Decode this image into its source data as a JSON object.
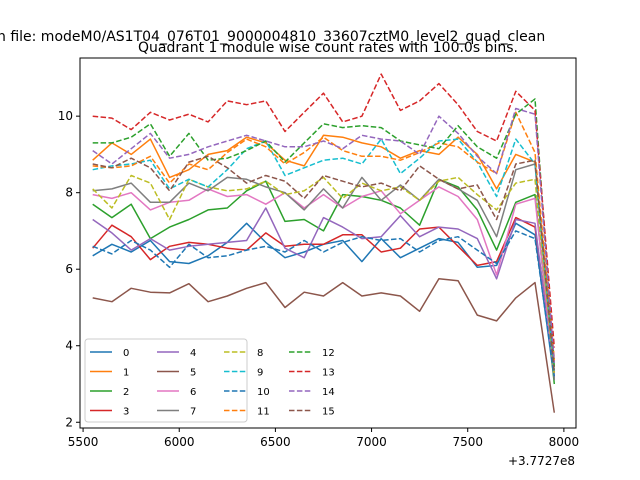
{
  "chart_data": {
    "type": "line",
    "suptitle": "n file: modeM0/AS1T04_076T01_9000004810_33607cztM0_level2_quad_clean",
    "title": "Quadrant 1 module wise count rates with 100.0s bins.",
    "xlabel": "",
    "ylabel": "",
    "x_offset_label": "+3.7727e8",
    "xlim": [
      5484,
      8063
    ],
    "ylim": [
      1.85,
      11.52
    ],
    "xticks": [
      5500,
      6000,
      6500,
      7000,
      7500,
      8000
    ],
    "yticks": [
      2,
      4,
      6,
      8,
      10
    ],
    "x": [
      5550,
      5650,
      5750,
      5850,
      5950,
      6050,
      6150,
      6250,
      6350,
      6450,
      6550,
      6650,
      6750,
      6850,
      6950,
      7050,
      7150,
      7250,
      7350,
      7450,
      7550,
      7650,
      7750,
      7850,
      7950
    ],
    "legend_position": "lower-left",
    "legend_columns": 4,
    "series": [
      {
        "name": "0",
        "color": "#1f77b4",
        "dash": "solid",
        "values": [
          6.35,
          6.65,
          6.45,
          6.75,
          6.2,
          6.15,
          6.35,
          6.7,
          7.2,
          6.7,
          6.3,
          6.45,
          6.65,
          6.75,
          6.2,
          6.8,
          6.3,
          6.55,
          6.8,
          6.7,
          6.05,
          6.1,
          7.2,
          6.9,
          3.1
        ]
      },
      {
        "name": "1",
        "color": "#ff7f0e",
        "dash": "solid",
        "values": [
          8.85,
          9.3,
          9.0,
          9.4,
          8.4,
          8.6,
          9.0,
          9.1,
          9.45,
          9.3,
          8.85,
          8.7,
          9.5,
          9.45,
          9.3,
          9.2,
          8.9,
          9.1,
          9.0,
          9.45,
          9.0,
          8.1,
          9.0,
          8.8,
          3.6
        ]
      },
      {
        "name": "2",
        "color": "#2ca02c",
        "dash": "solid",
        "values": [
          7.7,
          7.35,
          7.7,
          6.8,
          7.1,
          7.3,
          7.55,
          7.6,
          8.05,
          8.3,
          7.25,
          7.3,
          7.0,
          7.95,
          7.9,
          7.8,
          7.6,
          7.15,
          8.35,
          8.15,
          7.55,
          6.5,
          7.75,
          7.95,
          3.0
        ]
      },
      {
        "name": "3",
        "color": "#d62728",
        "dash": "solid",
        "values": [
          6.55,
          7.15,
          6.85,
          6.25,
          6.6,
          6.7,
          6.65,
          6.55,
          6.5,
          6.95,
          6.6,
          6.65,
          6.65,
          6.9,
          6.9,
          6.45,
          6.55,
          7.05,
          7.1,
          6.6,
          6.1,
          6.2,
          7.35,
          7.1,
          3.3
        ]
      },
      {
        "name": "4",
        "color": "#9467bd",
        "dash": "solid",
        "values": [
          7.3,
          6.95,
          6.5,
          6.8,
          6.5,
          6.6,
          6.65,
          6.7,
          6.75,
          7.6,
          6.55,
          6.3,
          7.35,
          7.1,
          6.8,
          6.85,
          7.4,
          6.85,
          7.1,
          7.05,
          6.8,
          5.75,
          7.3,
          7.2,
          3.15
        ]
      },
      {
        "name": "5",
        "color": "#8c564b",
        "dash": "solid",
        "values": [
          5.25,
          5.15,
          5.5,
          5.4,
          5.38,
          5.62,
          5.15,
          5.3,
          5.5,
          5.65,
          5.0,
          5.4,
          5.3,
          5.65,
          5.3,
          5.38,
          5.3,
          4.9,
          5.75,
          5.7,
          4.8,
          4.65,
          5.25,
          5.65,
          2.25
        ]
      },
      {
        "name": "6",
        "color": "#e377c2",
        "dash": "solid",
        "values": [
          7.95,
          7.85,
          8.0,
          7.55,
          7.75,
          7.8,
          8.1,
          7.9,
          7.95,
          7.7,
          8.0,
          7.6,
          7.95,
          7.6,
          7.9,
          8.05,
          7.45,
          7.8,
          8.15,
          7.9,
          7.3,
          5.85,
          7.7,
          7.85,
          3.2
        ]
      },
      {
        "name": "7",
        "color": "#7f7f7f",
        "dash": "solid",
        "values": [
          8.05,
          8.1,
          8.25,
          7.75,
          7.75,
          8.25,
          8.05,
          8.4,
          8.35,
          8.15,
          8.0,
          7.55,
          8.1,
          7.6,
          8.4,
          7.8,
          8.2,
          7.8,
          8.35,
          8.1,
          7.8,
          6.85,
          8.6,
          8.75,
          3.1
        ]
      },
      {
        "name": "8",
        "color": "#bcbd22",
        "dash": "dashed",
        "values": [
          8.1,
          7.6,
          8.45,
          8.25,
          7.3,
          8.35,
          8.15,
          8.05,
          8.1,
          8.3,
          7.95,
          8.05,
          8.4,
          7.85,
          8.25,
          8.05,
          8.15,
          7.8,
          8.3,
          8.4,
          7.95,
          7.55,
          8.25,
          8.35,
          3.25
        ]
      },
      {
        "name": "9",
        "color": "#17becf",
        "dash": "dashed",
        "values": [
          8.6,
          8.7,
          8.75,
          8.85,
          8.1,
          8.35,
          8.15,
          8.6,
          9.15,
          9.35,
          8.45,
          8.65,
          8.85,
          8.9,
          8.75,
          9.4,
          8.5,
          8.9,
          9.35,
          9.4,
          8.8,
          7.9,
          9.4,
          8.75,
          3.35
        ]
      },
      {
        "name": "10",
        "color": "#1f77b4",
        "dash": "dashed",
        "values": [
          6.6,
          6.4,
          6.75,
          6.5,
          6.05,
          6.65,
          6.3,
          6.35,
          6.5,
          6.6,
          6.45,
          6.75,
          6.45,
          6.7,
          6.85,
          6.75,
          6.8,
          6.45,
          6.75,
          6.85,
          6.5,
          6.15,
          7.0,
          6.8,
          3.2
        ]
      },
      {
        "name": "11",
        "color": "#ff7f0e",
        "dash": "dashed",
        "values": [
          8.7,
          8.65,
          8.7,
          8.95,
          8.25,
          8.75,
          8.6,
          9.05,
          9.4,
          9.2,
          8.75,
          9.05,
          9.45,
          9.1,
          8.95,
          8.95,
          8.85,
          9.05,
          9.3,
          9.2,
          8.8,
          8.5,
          10.1,
          9.05,
          3.65
        ]
      },
      {
        "name": "12",
        "color": "#2ca02c",
        "dash": "dashed",
        "values": [
          9.3,
          9.3,
          9.45,
          9.8,
          8.95,
          9.55,
          8.85,
          8.9,
          9.1,
          9.35,
          8.8,
          9.3,
          9.8,
          9.7,
          9.75,
          9.7,
          9.35,
          9.25,
          9.15,
          9.75,
          9.2,
          8.9,
          10.05,
          10.45,
          3.45
        ]
      },
      {
        "name": "13",
        "color": "#d62728",
        "dash": "dashed",
        "values": [
          10.0,
          9.95,
          9.65,
          10.1,
          9.9,
          10.05,
          9.85,
          10.4,
          10.3,
          10.4,
          9.6,
          10.1,
          10.6,
          9.85,
          10.0,
          11.1,
          10.15,
          10.4,
          10.85,
          10.3,
          9.6,
          9.35,
          10.65,
          10.15,
          3.95
        ]
      },
      {
        "name": "14",
        "color": "#9467bd",
        "dash": "dashed",
        "values": [
          9.1,
          8.75,
          9.15,
          9.55,
          8.9,
          9.0,
          9.2,
          9.35,
          9.5,
          9.35,
          9.2,
          9.2,
          9.35,
          9.15,
          9.5,
          9.4,
          9.35,
          9.0,
          10.0,
          9.55,
          8.95,
          8.5,
          10.2,
          10.05,
          3.55
        ]
      },
      {
        "name": "15",
        "color": "#8c564b",
        "dash": "dashed",
        "values": [
          8.75,
          8.65,
          8.9,
          8.65,
          8.05,
          8.8,
          8.95,
          8.65,
          8.25,
          8.45,
          8.3,
          7.85,
          8.45,
          8.3,
          8.15,
          8.25,
          8.05,
          8.7,
          8.35,
          8.1,
          8.2,
          7.3,
          8.75,
          8.85,
          3.3
        ]
      }
    ]
  }
}
